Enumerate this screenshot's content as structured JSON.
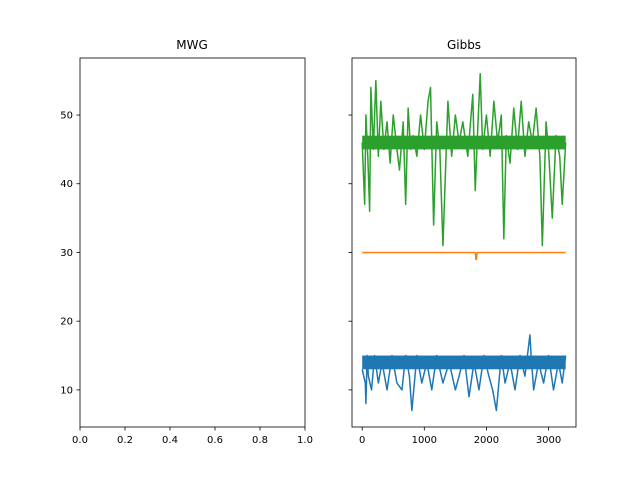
{
  "chart_data": [
    {
      "type": "line",
      "title": "MWG",
      "xlabel": "",
      "ylabel": "",
      "xlim": [
        0.0,
        1.0
      ],
      "ylim": [
        4.6,
        58.3
      ],
      "x_ticks": [
        "0.0",
        "0.2",
        "0.4",
        "0.6",
        "0.8",
        "1.0"
      ],
      "y_ticks": [
        "10",
        "20",
        "30",
        "40",
        "50"
      ],
      "series": []
    },
    {
      "type": "line",
      "title": "Gibbs",
      "xlabel": "",
      "ylabel": "",
      "xlim": [
        -164,
        3442
      ],
      "ylim": [
        4.6,
        58.3
      ],
      "sharey": true,
      "x_ticks": [
        "0",
        "1000",
        "2000",
        "3000"
      ],
      "y_ticks": [
        "10",
        "20",
        "30",
        "40",
        "50"
      ],
      "series": [
        {
          "color": "#1f77b4",
          "band": [
            13,
            15
          ],
          "x": [
            0,
            50,
            60,
            80,
            100,
            150,
            200,
            260,
            320,
            400,
            480,
            560,
            640,
            700,
            760,
            800,
            880,
            960,
            1040,
            1120,
            1200,
            1300,
            1400,
            1500,
            1560,
            1640,
            1720,
            1800,
            1880,
            1960,
            2040,
            2100,
            2160,
            2240,
            2300,
            2380,
            2460,
            2540,
            2620,
            2700,
            2720,
            2760,
            2840,
            2920,
            3000,
            3080,
            3160,
            3220,
            3276
          ],
          "y": [
            13,
            11,
            8,
            15,
            12,
            10,
            15,
            11,
            14,
            10,
            15,
            11,
            10,
            15,
            12,
            7,
            15,
            11,
            14,
            10,
            15,
            11,
            14,
            10,
            12,
            15,
            9,
            14,
            10,
            15,
            12,
            10,
            7,
            15,
            11,
            14,
            10,
            15,
            12,
            18,
            15,
            10,
            14,
            11,
            15,
            10,
            14,
            11,
            15
          ]
        },
        {
          "color": "#ff7f0e",
          "x": [
            0,
            1820,
            1830,
            1840,
            1850,
            3276
          ],
          "y": [
            30,
            30,
            29,
            29,
            30,
            30
          ]
        },
        {
          "color": "#2ca02c",
          "band": [
            45,
            47
          ],
          "x": [
            0,
            40,
            60,
            90,
            120,
            140,
            180,
            220,
            260,
            300,
            350,
            400,
            450,
            500,
            560,
            600,
            660,
            700,
            740,
            780,
            820,
            880,
            940,
            1000,
            1060,
            1100,
            1150,
            1200,
            1250,
            1300,
            1380,
            1440,
            1500,
            1560,
            1620,
            1700,
            1780,
            1820,
            1860,
            1900,
            1940,
            2000,
            2060,
            2120,
            2180,
            2240,
            2280,
            2320,
            2380,
            2440,
            2500,
            2560,
            2620,
            2680,
            2740,
            2800,
            2860,
            2900,
            2960,
            3000,
            3060,
            3120,
            3180,
            3220,
            3276
          ],
          "y": [
            46,
            37,
            50,
            44,
            36,
            54,
            45,
            55,
            44,
            52,
            45,
            49,
            43,
            50,
            45,
            42,
            49,
            37,
            51,
            45,
            47,
            44,
            50,
            45,
            52,
            54,
            34,
            49,
            45,
            31,
            52,
            44,
            50,
            46,
            49,
            44,
            53,
            39,
            48,
            56,
            45,
            50,
            44,
            52,
            46,
            50,
            32,
            47,
            43,
            51,
            45,
            52,
            44,
            49,
            46,
            51,
            44,
            31,
            49,
            45,
            35,
            47,
            44,
            37,
            46
          ]
        }
      ]
    }
  ]
}
